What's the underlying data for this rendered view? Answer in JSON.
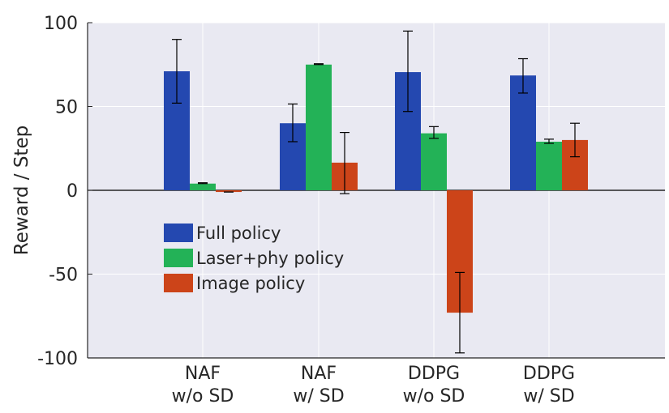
{
  "chart_data": {
    "type": "bar",
    "title": "",
    "xlabel": "",
    "ylabel": "Reward / Step",
    "ylim": [
      -100,
      100
    ],
    "yticks": [
      100,
      50,
      0,
      -50,
      -100
    ],
    "ytick_labels": [
      "100",
      "50",
      "0",
      "-50",
      "-100"
    ],
    "grid": true,
    "legend_position": "center-left",
    "categories": [
      {
        "line1": "NAF",
        "line2": "w/o SD"
      },
      {
        "line1": "NAF",
        "line2": "w/ SD"
      },
      {
        "line1": "DDPG",
        "line2": "w/o SD"
      },
      {
        "line1": "DDPG",
        "line2": "w/ SD"
      }
    ],
    "series": [
      {
        "name": "Full policy",
        "color": "#2448b0",
        "values": [
          71,
          40,
          70.5,
          68.5
        ],
        "error_low": [
          52,
          29,
          47,
          58
        ],
        "error_high": [
          90,
          51.5,
          95,
          78.5
        ]
      },
      {
        "name": "Laser+phy policy",
        "color": "#23b257",
        "values": [
          4,
          75,
          34,
          29
        ],
        "error_low": [
          4,
          75,
          31,
          28
        ],
        "error_high": [
          4.5,
          75.5,
          38,
          30.5
        ]
      },
      {
        "name": "Image policy",
        "color": "#cc4419",
        "values": [
          -1,
          16.5,
          -73,
          30
        ],
        "error_low": [
          -1,
          -2,
          -97,
          20
        ],
        "error_high": [
          -1,
          34.5,
          -49,
          40
        ]
      }
    ],
    "colors": {
      "plot_background": "#e9e9f2",
      "grid": "#ffffff",
      "zero_line": "#000000"
    }
  }
}
